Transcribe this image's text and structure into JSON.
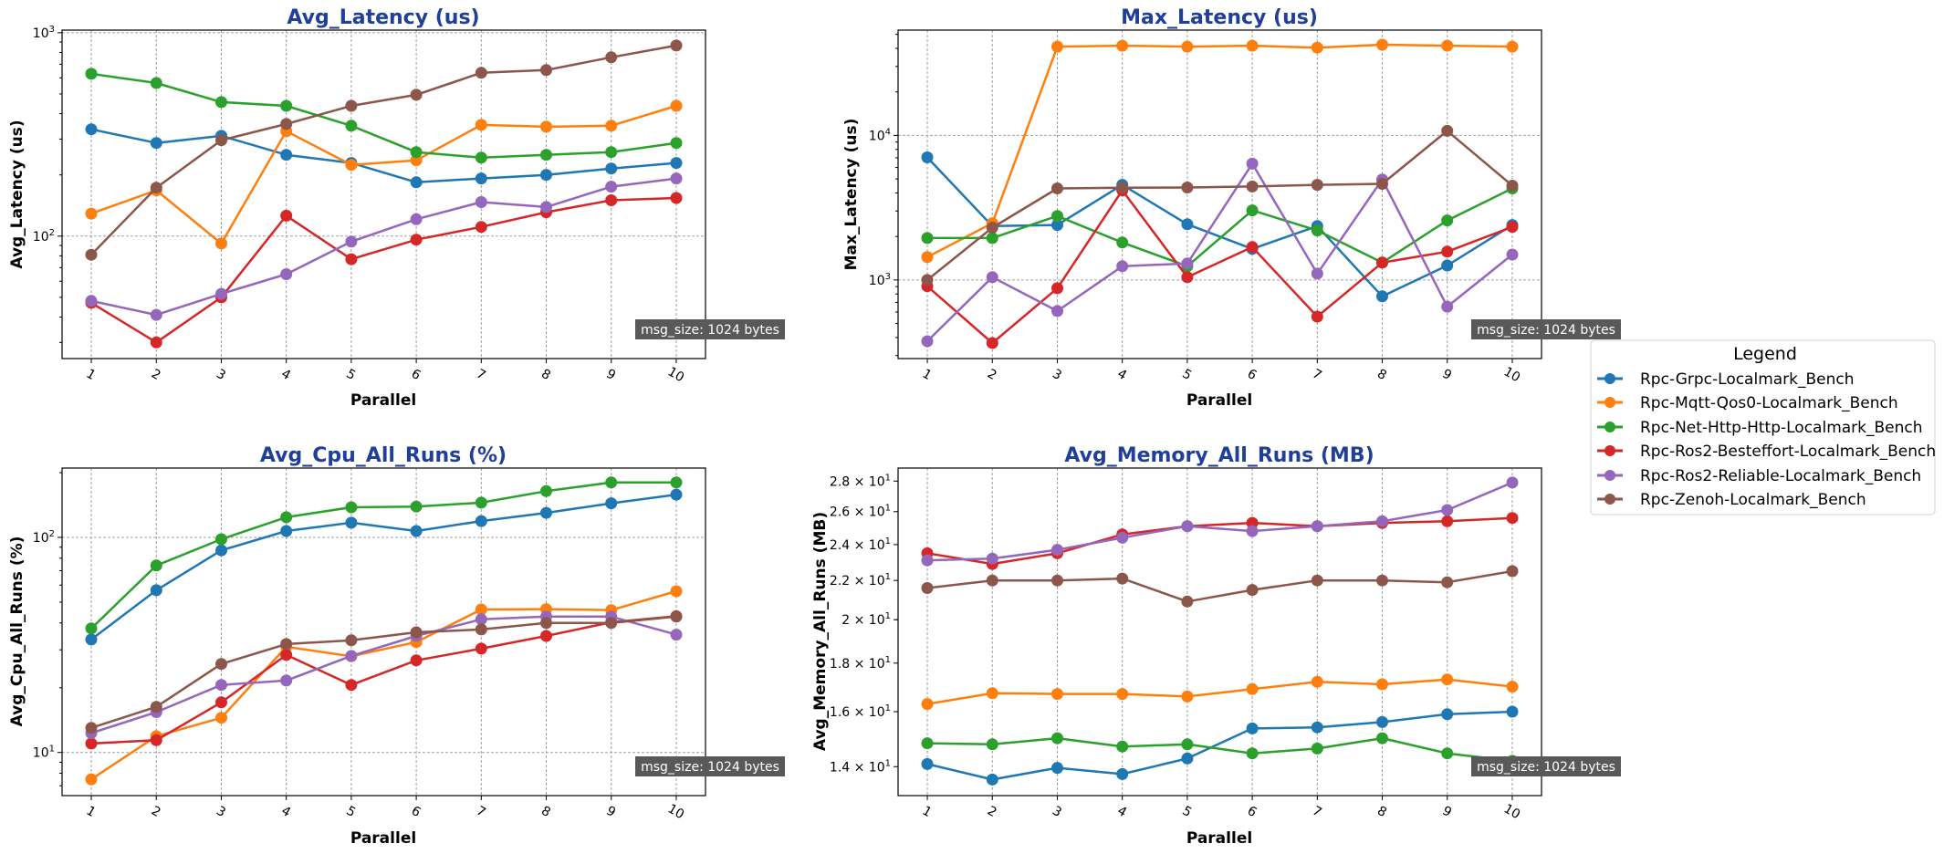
{
  "chart_data": [
    {
      "type": "line",
      "title": "Avg_Latency (us)",
      "xlabel": "Parallel",
      "ylabel": "Avg_Latency (us)",
      "yscale": "log",
      "ylim": [
        25,
        1030
      ],
      "xlim": [
        0.55,
        10.45
      ],
      "grid": "both",
      "y_ticks": [
        {
          "value": 100,
          "label": "10",
          "exp": "2"
        },
        {
          "value": 1000,
          "label": "10",
          "exp": "3"
        }
      ],
      "annotation": "msg_size: 1024 bytes",
      "x": [
        1,
        2,
        3,
        4,
        5,
        6,
        7,
        8,
        9,
        10
      ],
      "series": [
        {
          "name": "Rpc-Grpc-Localmark_Bench",
          "values": [
            335,
            287,
            311,
            251,
            229,
            184,
            192,
            200,
            215,
            229
          ]
        },
        {
          "name": "Rpc-Mqtt-Qos0-Localmark_Bench",
          "values": [
            129,
            168,
            92,
            328,
            224,
            236,
            352,
            345,
            349,
            437
          ]
        },
        {
          "name": "Rpc-Net-Http-Http-Localmark_Bench",
          "values": [
            628,
            566,
            456,
            437,
            349,
            259,
            243,
            251,
            259,
            287
          ]
        },
        {
          "name": "Rpc-Ros2-Besteffort-Localmark_Bench",
          "values": [
            47,
            30,
            50,
            126,
            77,
            96,
            111,
            131,
            150,
            154
          ]
        },
        {
          "name": "Rpc-Ros2-Reliable-Localmark_Bench",
          "values": [
            48,
            41,
            52,
            65,
            94,
            121,
            147,
            139,
            175,
            192
          ]
        },
        {
          "name": "Rpc-Zenoh-Localmark_Bench",
          "values": [
            81,
            173,
            296,
            356,
            437,
            495,
            635,
            655,
            757,
            865
          ]
        }
      ]
    },
    {
      "type": "line",
      "title": "Max_Latency (us)",
      "xlabel": "Parallel",
      "ylabel": "Max_Latency (us)",
      "yscale": "log",
      "ylim": [
        286,
        53500
      ],
      "xlim": [
        0.55,
        10.45
      ],
      "grid": "both",
      "y_ticks": [
        {
          "value": 1000,
          "label": "10",
          "exp": "3"
        },
        {
          "value": 10000,
          "label": "10",
          "exp": "4"
        }
      ],
      "annotation": "msg_size: 1024 bytes",
      "x": [
        1,
        2,
        3,
        4,
        5,
        6,
        7,
        8,
        9,
        10
      ],
      "series": [
        {
          "name": "Rpc-Grpc-Localmark_Bench",
          "values": [
            7050,
            2360,
            2400,
            4550,
            2430,
            1640,
            2360,
            770,
            1260,
            2400
          ]
        },
        {
          "name": "Rpc-Mqtt-Qos0-Localmark_Bench",
          "values": [
            1440,
            2470,
            41100,
            41700,
            41100,
            41700,
            40500,
            42400,
            41700,
            41100
          ]
        },
        {
          "name": "Rpc-Net-Http-Http-Localmark_Bench",
          "values": [
            1950,
            1950,
            2770,
            1815,
            1245,
            3030,
            2200,
            1320,
            2580,
            4300
          ]
        },
        {
          "name": "Rpc-Ros2-Besteffort-Localmark_Bench",
          "values": [
            905,
            366,
            877,
            4170,
            1045,
            1690,
            558,
            1320,
            1570,
            2330
          ]
        },
        {
          "name": "Rpc-Ros2-Reliable-Localmark_Bench",
          "values": [
            377,
            1045,
            610,
            1245,
            1300,
            6370,
            1107,
            4960,
            654,
            1500
          ]
        },
        {
          "name": "Rpc-Zenoh-Localmark_Bench",
          "values": [
            1000,
            2300,
            4300,
            4350,
            4360,
            4430,
            4550,
            4620,
            10760,
            4490
          ]
        }
      ]
    },
    {
      "type": "line",
      "title": "Avg_Cpu_All_Runs (%)",
      "xlabel": "Parallel",
      "ylabel": "Avg_Cpu_All_Runs (%)",
      "yscale": "log",
      "ylim": [
        6.3,
        210
      ],
      "xlim": [
        0.55,
        10.45
      ],
      "grid": "both",
      "y_ticks": [
        {
          "value": 10,
          "label": "10",
          "exp": "1"
        },
        {
          "value": 100,
          "label": "10",
          "exp": "2"
        }
      ],
      "annotation": "msg_size: 1024 bytes",
      "x": [
        1,
        2,
        3,
        4,
        5,
        6,
        7,
        8,
        9,
        10
      ],
      "series": [
        {
          "name": "Rpc-Grpc-Localmark_Bench",
          "values": [
            33.5,
            56.8,
            87,
            107,
            117,
            107,
            119,
            130,
            144,
            158
          ]
        },
        {
          "name": "Rpc-Mqtt-Qos0-Localmark_Bench",
          "values": [
            7.5,
            11.9,
            14.5,
            31,
            28.0,
            32.6,
            46.2,
            46.4,
            45.9,
            56.2
          ]
        },
        {
          "name": "Rpc-Net-Http-Http-Localmark_Bench",
          "values": [
            37.7,
            74,
            98,
            124,
            138,
            139,
            145,
            164,
            180,
            180
          ]
        },
        {
          "name": "Rpc-Ros2-Besteffort-Localmark_Bench",
          "values": [
            11.0,
            11.4,
            17.1,
            28.4,
            20.6,
            26.8,
            30.4,
            34.8,
            40.3,
            43.0
          ]
        },
        {
          "name": "Rpc-Ros2-Reliable-Localmark_Bench",
          "values": [
            12.3,
            15.4,
            20.6,
            21.6,
            28.1,
            34.8,
            41.6,
            42.8,
            42.8,
            35.3
          ]
        },
        {
          "name": "Rpc-Zenoh-Localmark_Bench",
          "values": [
            13.0,
            16.3,
            25.8,
            31.9,
            33.2,
            36.2,
            37.3,
            40.0,
            40.0,
            42.8
          ]
        }
      ]
    },
    {
      "type": "line",
      "title": "Avg_Memory_All_Runs (MB)",
      "xlabel": "Parallel",
      "ylabel": "Avg_Memory_All_Runs (MB)",
      "yscale": "log",
      "ylim": [
        13.05,
        28.9
      ],
      "xlim": [
        0.55,
        10.45
      ],
      "grid": "x-only",
      "y_ticks": [
        {
          "value": 14,
          "label": "1.4 × 10",
          "exp": "1"
        },
        {
          "value": 16,
          "label": "1.6 × 10",
          "exp": "1"
        },
        {
          "value": 18,
          "label": "1.8 × 10",
          "exp": "1"
        },
        {
          "value": 20,
          "label": "2 × 10",
          "exp": "1"
        },
        {
          "value": 22,
          "label": "2.2 × 10",
          "exp": "1"
        },
        {
          "value": 24,
          "label": "2.4 × 10",
          "exp": "1"
        },
        {
          "value": 26,
          "label": "2.6 × 10",
          "exp": "1"
        },
        {
          "value": 28,
          "label": "2.8 × 10",
          "exp": "1"
        }
      ],
      "annotation": "msg_size: 1024 bytes",
      "x": [
        1,
        2,
        3,
        4,
        5,
        6,
        7,
        8,
        9,
        10
      ],
      "series": [
        {
          "name": "Rpc-Grpc-Localmark_Bench",
          "values": [
            14.09,
            13.57,
            13.96,
            13.75,
            14.28,
            15.36,
            15.4,
            15.6,
            15.9,
            16.0
          ]
        },
        {
          "name": "Rpc-Mqtt-Qos0-Localmark_Bench",
          "values": [
            16.3,
            16.73,
            16.7,
            16.7,
            16.6,
            16.9,
            17.2,
            17.1,
            17.3,
            17.0
          ]
        },
        {
          "name": "Rpc-Net-Http-Http-Localmark_Bench",
          "values": [
            14.82,
            14.78,
            15.0,
            14.7,
            14.78,
            14.46,
            14.63,
            15.0,
            14.46,
            14.2
          ]
        },
        {
          "name": "Rpc-Ros2-Besteffort-Localmark_Bench",
          "values": [
            23.5,
            22.9,
            23.5,
            24.6,
            25.1,
            25.3,
            25.1,
            25.3,
            25.4,
            25.6
          ]
        },
        {
          "name": "Rpc-Ros2-Reliable-Localmark_Bench",
          "values": [
            23.1,
            23.2,
            23.7,
            24.4,
            25.1,
            24.8,
            25.1,
            25.4,
            26.1,
            27.9
          ]
        },
        {
          "name": "Rpc-Zenoh-Localmark_Bench",
          "values": [
            21.6,
            22.0,
            22.0,
            22.1,
            20.9,
            21.5,
            22.0,
            22.0,
            21.9,
            22.5
          ]
        }
      ]
    }
  ],
  "legend": {
    "title": "Legend",
    "placement": "right",
    "items": [
      {
        "label": "Rpc-Grpc-Localmark_Bench",
        "color": "#1f77b4"
      },
      {
        "label": "Rpc-Mqtt-Qos0-Localmark_Bench",
        "color": "#ff7f0e"
      },
      {
        "label": "Rpc-Net-Http-Http-Localmark_Bench",
        "color": "#2ca02c"
      },
      {
        "label": "Rpc-Ros2-Besteffort-Localmark_Bench",
        "color": "#d62728"
      },
      {
        "label": "Rpc-Ros2-Reliable-Localmark_Bench",
        "color": "#9467bd"
      },
      {
        "label": "Rpc-Zenoh-Localmark_Bench",
        "color": "#8c564b"
      }
    ]
  },
  "colors": {
    "title": "#1f3f99",
    "annotation_bg": "#595959",
    "grid": "#a0a0a0"
  }
}
